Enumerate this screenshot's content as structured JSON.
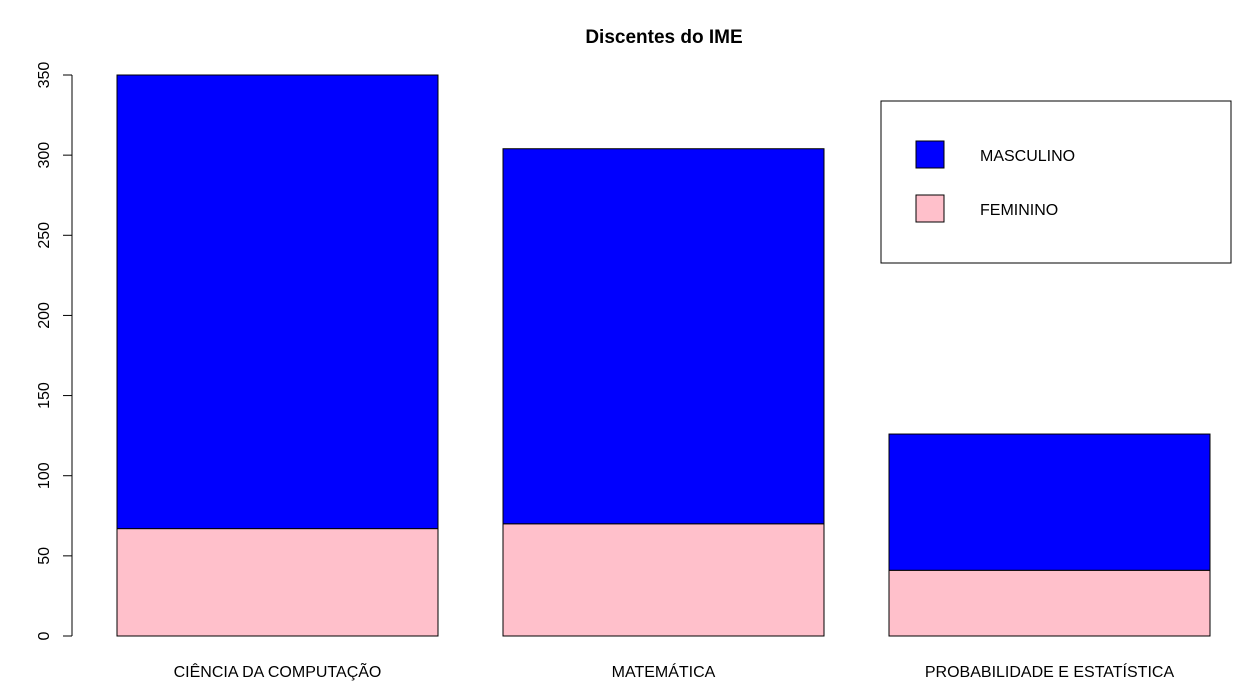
{
  "chart_data": {
    "type": "bar",
    "stacked": true,
    "title": "Discentes do IME",
    "xlabel": "",
    "ylabel": "",
    "categories": [
      "CIÊNCIA DA COMPUTAÇÃO",
      "MATEMÁTICA",
      "PROBABILIDADE E ESTATÍSTICA"
    ],
    "series": [
      {
        "name": "FEMININO",
        "color": "#ffc0cb",
        "values": [
          67,
          70,
          41
        ]
      },
      {
        "name": "MASCULINO",
        "color": "#0000ff",
        "values": [
          283,
          234,
          85
        ]
      }
    ],
    "ylim": [
      0,
      350
    ],
    "yticks": [
      0,
      50,
      100,
      150,
      200,
      250,
      300,
      350
    ],
    "grid": false,
    "legend": {
      "position": "top-right",
      "entries": [
        {
          "label": "MASCULINO",
          "color": "#0000ff"
        },
        {
          "label": "FEMININO",
          "color": "#ffc0cb"
        }
      ]
    }
  }
}
